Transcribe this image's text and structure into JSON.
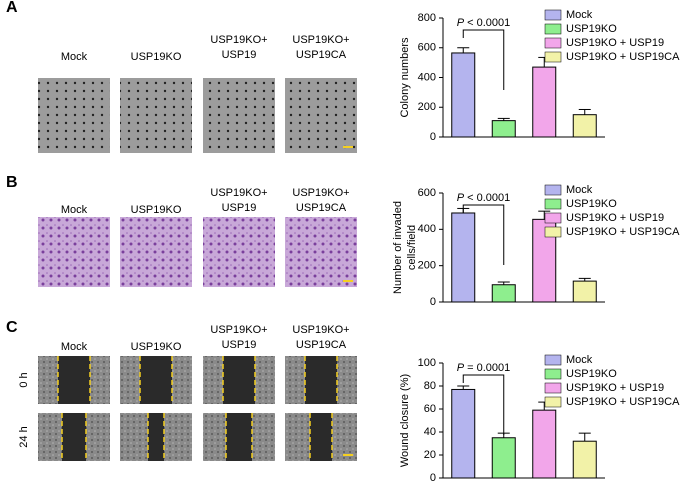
{
  "panels": [
    {
      "label": "A",
      "columns": [
        [
          "Mock"
        ],
        [
          "USP19KO"
        ],
        [
          "USP19KO+",
          "USP19"
        ],
        [
          "USP19KO+",
          "USP19CA"
        ]
      ]
    },
    {
      "label": "B",
      "columns": [
        [
          "Mock"
        ],
        [
          "USP19KO"
        ],
        [
          "USP19KO+",
          "USP19"
        ],
        [
          "USP19KO+",
          "USP19CA"
        ]
      ]
    },
    {
      "label": "C",
      "columns": [
        [
          "Mock"
        ],
        [
          "USP19KO"
        ],
        [
          "USP19KO+",
          "USP19"
        ],
        [
          "USP19KO+",
          "USP19CA"
        ]
      ],
      "rows": [
        "0 h",
        "24 h"
      ]
    }
  ],
  "chart_data": [
    {
      "type": "bar",
      "ylabel": [
        "Colony numbers"
      ],
      "annotation": [
        "P",
        " < 0.0001"
      ],
      "ylim": [
        0,
        800
      ],
      "yticks": [
        0,
        200,
        400,
        600,
        800
      ],
      "series": [
        {
          "name": "Mock",
          "color": "#b4b4ee",
          "values": [
            565
          ],
          "errors": [
            35
          ]
        },
        {
          "name": "USP19KO",
          "color": "#8eee8e",
          "values": [
            110
          ],
          "errors": [
            15
          ]
        },
        {
          "name": "USP19KO + USP19",
          "color": "#f2a6ea",
          "values": [
            470
          ],
          "errors": [
            65
          ]
        },
        {
          "name": "USP19KO + USP19CA",
          "color": "#f2f2a8",
          "values": [
            150
          ],
          "errors": [
            35
          ]
        }
      ]
    },
    {
      "type": "bar",
      "ylabel": [
        "Number of invaded",
        "cells/field"
      ],
      "annotation": [
        "P",
        " < 0.0001"
      ],
      "ylim": [
        0,
        600
      ],
      "yticks": [
        0,
        200,
        400,
        600
      ],
      "series": [
        {
          "name": "Mock",
          "color": "#b4b4ee",
          "values": [
            490
          ],
          "errors": [
            25
          ]
        },
        {
          "name": "USP19KO",
          "color": "#8eee8e",
          "values": [
            95
          ],
          "errors": [
            15
          ]
        },
        {
          "name": "USP19KO + USP19",
          "color": "#f2a6ea",
          "values": [
            455
          ],
          "errors": [
            45
          ]
        },
        {
          "name": "USP19KO + USP19CA",
          "color": "#f2f2a8",
          "values": [
            115
          ],
          "errors": [
            15
          ]
        }
      ]
    },
    {
      "type": "bar",
      "ylabel": [
        "Wound closure (%)"
      ],
      "annotation": [
        "P",
        " = 0.0001"
      ],
      "ylim": [
        0,
        100
      ],
      "yticks": [
        0,
        20,
        40,
        60,
        80,
        100
      ],
      "series": [
        {
          "name": "Mock",
          "color": "#b4b4ee",
          "values": [
            77
          ],
          "errors": [
            3
          ]
        },
        {
          "name": "USP19KO",
          "color": "#8eee8e",
          "values": [
            35
          ],
          "errors": [
            4
          ]
        },
        {
          "name": "USP19KO + USP19",
          "color": "#f2a6ea",
          "values": [
            59
          ],
          "errors": [
            7
          ]
        },
        {
          "name": "USP19KO + USP19CA",
          "color": "#f2f2a8",
          "values": [
            32
          ],
          "errors": [
            7
          ]
        }
      ]
    }
  ]
}
